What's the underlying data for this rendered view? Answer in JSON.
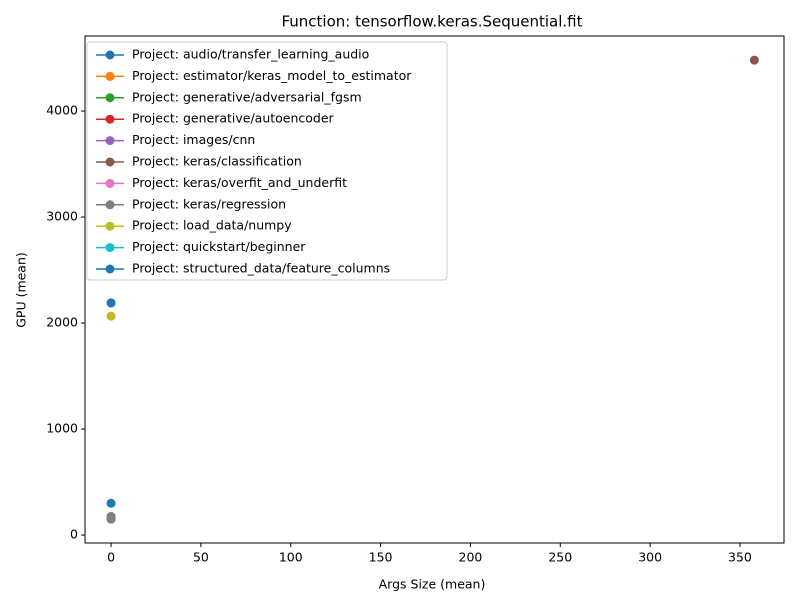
{
  "chart_data": {
    "type": "line",
    "title": "Function: tensorflow.keras.Sequential.fit",
    "x_label": "Args Size (mean)",
    "y_label": "GPU (mean)",
    "xlim": [
      -14.5,
      374.5
    ],
    "ylim": [
      -75,
      4708
    ],
    "xticks": [
      0,
      50,
      100,
      150,
      200,
      250,
      300,
      350
    ],
    "yticks": [
      0,
      1000,
      2000,
      3000,
      4000
    ],
    "legend": "upper left",
    "series": [
      {
        "name": "Project: audio/transfer_learning_audio",
        "color": "#1f77b4",
        "x": [
          0
        ],
        "values": [
          300
        ]
      },
      {
        "name": "Project: estimator/keras_model_to_estimator",
        "color": "#ff7f0e",
        "x": [
          0
        ],
        "values": [
          160
        ]
      },
      {
        "name": "Project: generative/adversarial_fgsm",
        "color": "#2ca02c",
        "x": [
          0
        ],
        "values": [
          160
        ]
      },
      {
        "name": "Project: generative/autoencoder",
        "color": "#d62728",
        "x": [
          0
        ],
        "values": [
          160
        ]
      },
      {
        "name": "Project: images/cnn",
        "color": "#9467bd",
        "x": [
          0
        ],
        "values": [
          160
        ]
      },
      {
        "name": "Project: keras/classification",
        "color": "#8c564b",
        "x": [
          358
        ],
        "values": [
          4480
        ]
      },
      {
        "name": "Project: keras/overfit_and_underfit",
        "color": "#e377c2",
        "x": [
          0
        ],
        "values": [
          175
        ]
      },
      {
        "name": "Project: keras/regression",
        "color": "#7f7f7f",
        "x": [
          0,
          0
        ],
        "values": [
          150,
          175
        ]
      },
      {
        "name": "Project: load_data/numpy",
        "color": "#bcbd22",
        "x": [
          0
        ],
        "values": [
          2065
        ]
      },
      {
        "name": "Project: quickstart/beginner",
        "color": "#17becf",
        "x": [
          0
        ],
        "values": [
          2190
        ]
      },
      {
        "name": "Project: structured_data/feature_columns",
        "color": "#1f77b4",
        "x": [
          0
        ],
        "values": [
          2190
        ]
      }
    ]
  }
}
